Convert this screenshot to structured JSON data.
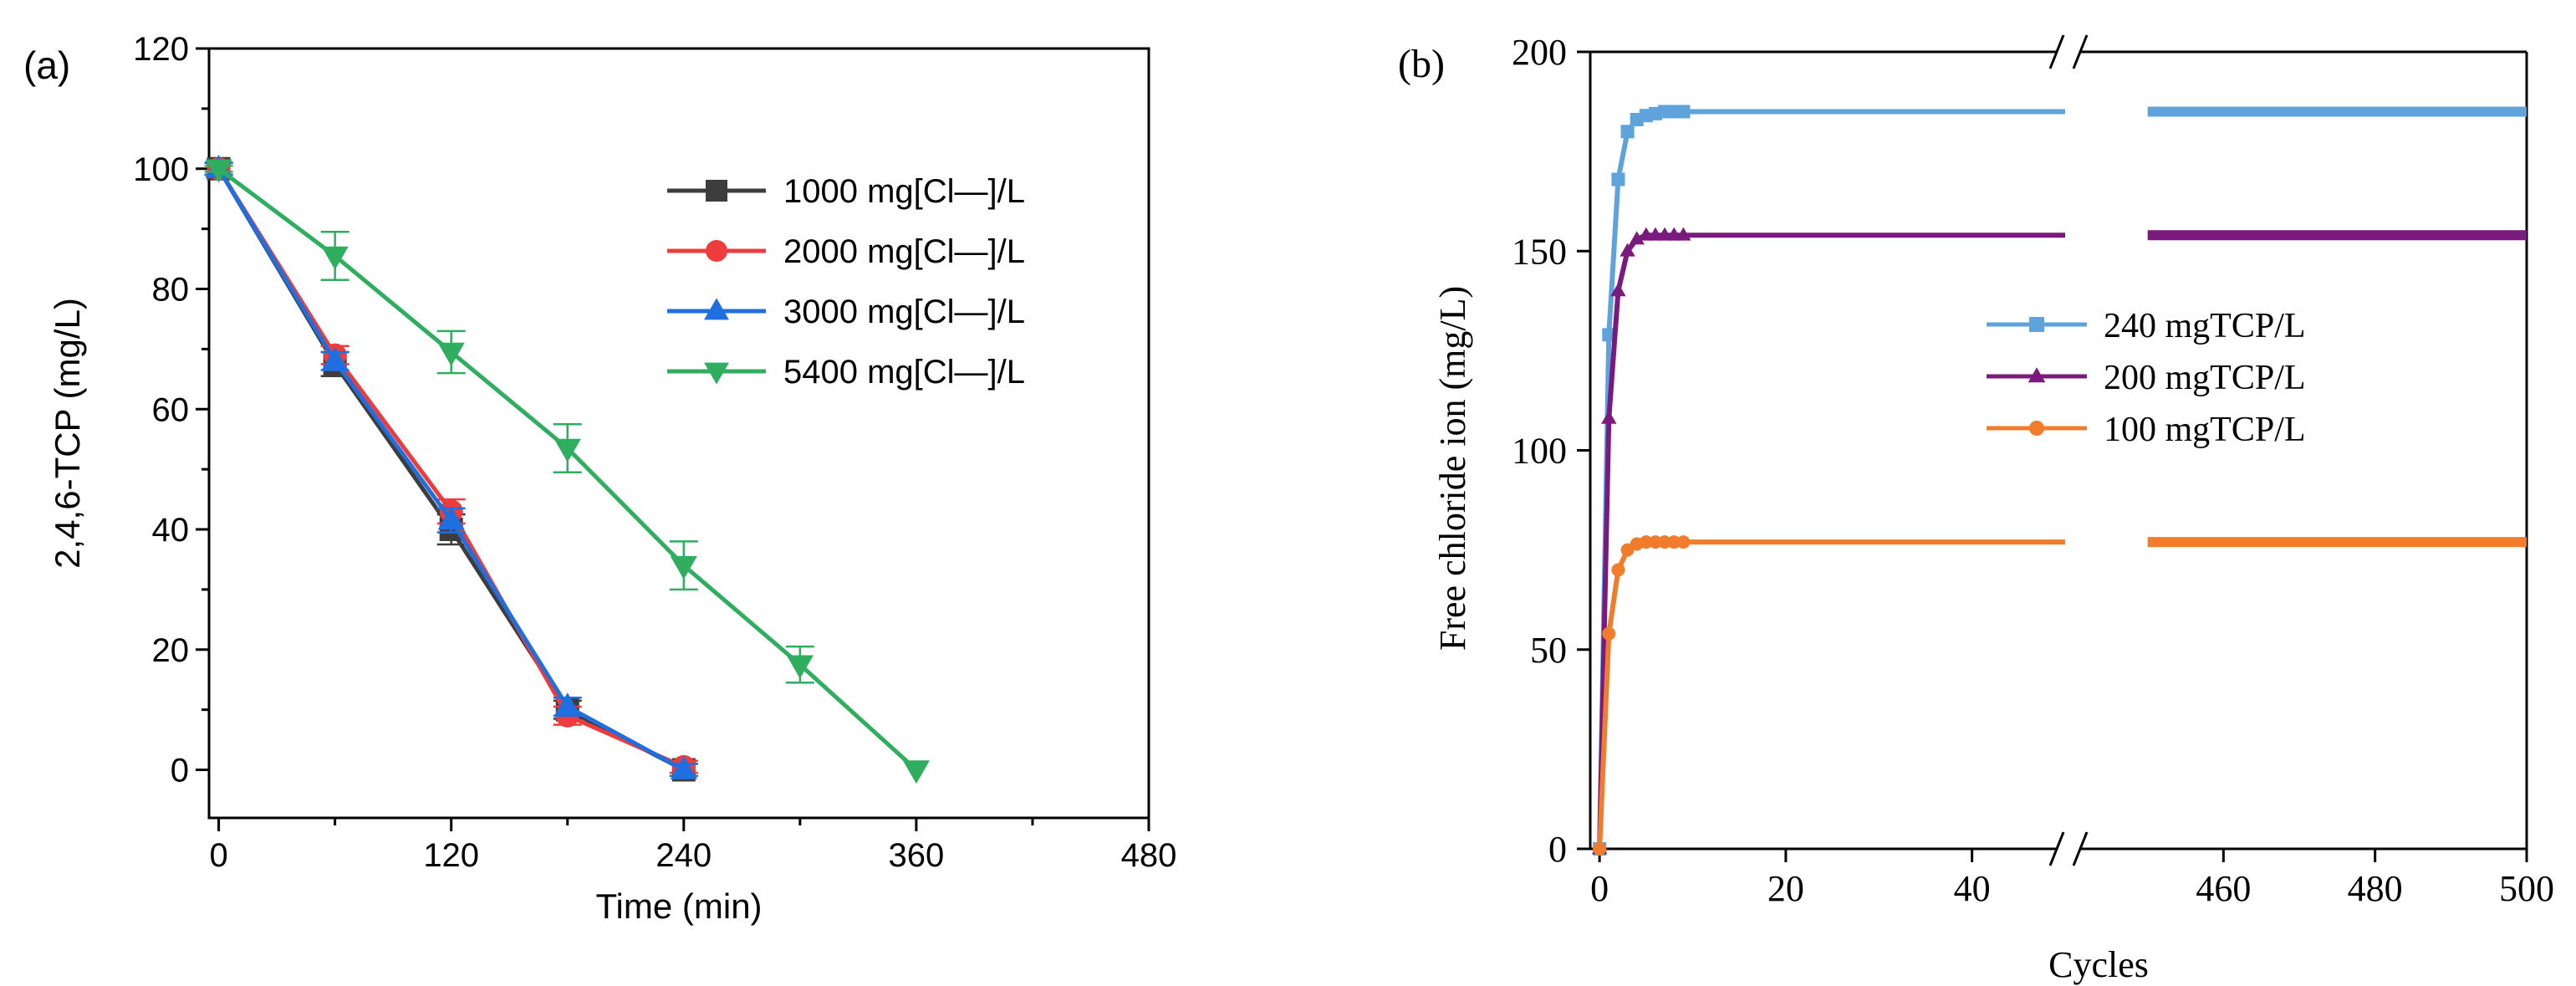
{
  "chart_data": [
    {
      "type": "line",
      "panel_label": "(a)",
      "title": "",
      "xlabel": "Time (min)",
      "ylabel": "2,4,6-TCP (mg/L)",
      "xlim": [
        -5,
        480
      ],
      "ylim": [
        -8,
        120
      ],
      "xticks": [
        0,
        120,
        240,
        360,
        480
      ],
      "yticks": [
        0,
        20,
        40,
        60,
        80,
        100,
        120
      ],
      "xtick_labels": [
        "0",
        "120",
        "240",
        "360",
        "480"
      ],
      "ytick_labels": [
        "0",
        "20",
        "40",
        "60",
        "80",
        "100",
        "120"
      ],
      "legend_position": "upper-right",
      "series": [
        {
          "name": "1000 mg[Cl—]/L",
          "color": "#3d3d3d",
          "marker": "square",
          "x": [
            0,
            60,
            120,
            180,
            240
          ],
          "y": [
            100,
            67.5,
            40,
            10,
            0
          ],
          "err": [
            1,
            2,
            2.5,
            1.5,
            1
          ]
        },
        {
          "name": "2000 mg[Cl—]/L",
          "color": "#ee3b3b",
          "marker": "circle",
          "x": [
            0,
            60,
            120,
            180,
            240
          ],
          "y": [
            100,
            69,
            43,
            9,
            0.5
          ],
          "err": [
            1,
            1.5,
            2,
            1.5,
            1
          ]
        },
        {
          "name": "3000 mg[Cl—]/L",
          "color": "#1f6fe0",
          "marker": "triangle-up",
          "x": [
            0,
            60,
            120,
            180,
            240
          ],
          "y": [
            100,
            68,
            41.5,
            10.5,
            0
          ],
          "err": [
            1,
            1.5,
            2,
            1.5,
            1
          ]
        },
        {
          "name": "5400 mg[Cl—]/L",
          "color": "#2fae5f",
          "marker": "triangle-down",
          "x": [
            0,
            60,
            120,
            180,
            240,
            300,
            360
          ],
          "y": [
            100,
            85.5,
            69.5,
            53.5,
            34,
            17.5,
            0
          ],
          "err": [
            0.5,
            4,
            3.5,
            4,
            4,
            3,
            0
          ]
        }
      ]
    },
    {
      "type": "line",
      "panel_label": "(b)",
      "title": "",
      "xlabel": "Cycles",
      "ylabel": "Free chloride ion (mg/L)",
      "ylim": [
        0,
        200
      ],
      "yticks": [
        0,
        50,
        100,
        150,
        200
      ],
      "ytick_labels": [
        "0",
        "50",
        "100",
        "150",
        "200"
      ],
      "x_break": true,
      "x_segments": [
        {
          "range": [
            -1,
            50
          ],
          "ticks": [
            0,
            20,
            40
          ],
          "labels": [
            "0",
            "20",
            "40"
          ]
        },
        {
          "range": [
            440,
            500
          ],
          "ticks": [
            460,
            480,
            500
          ],
          "labels": [
            "460",
            "480",
            "500"
          ]
        }
      ],
      "legend_position": "center-right",
      "series": [
        {
          "name": "240 mgTCP/L",
          "color": "#5ea3dc",
          "marker": "square",
          "x": [
            0,
            1,
            2,
            3,
            4,
            5,
            6,
            7,
            8,
            9,
            10,
            12,
            14,
            16,
            18,
            20,
            25,
            30,
            35,
            40,
            45,
            50,
            450,
            460,
            470,
            480,
            490,
            500
          ],
          "y": [
            0,
            129,
            168,
            180,
            183,
            184,
            184.5,
            185,
            185,
            185,
            185,
            185,
            185,
            185,
            185,
            185,
            185,
            185,
            185,
            185,
            185,
            185,
            185,
            185,
            185,
            185,
            185,
            185
          ]
        },
        {
          "name": "200 mgTCP/L",
          "color": "#7b1a7e",
          "marker": "triangle-up",
          "x": [
            0,
            1,
            2,
            3,
            4,
            5,
            6,
            7,
            8,
            9,
            10,
            12,
            14,
            16,
            18,
            20,
            25,
            30,
            35,
            40,
            45,
            50,
            450,
            460,
            470,
            480,
            490,
            500
          ],
          "y": [
            0,
            108,
            140,
            150,
            153,
            154,
            154,
            154,
            154,
            154,
            154,
            154,
            154,
            154,
            154,
            154,
            154,
            154,
            154,
            154,
            154,
            154,
            154,
            154,
            154,
            154,
            154,
            154
          ]
        },
        {
          "name": "100 mgTCP/L",
          "color": "#f07c2c",
          "marker": "circle",
          "x": [
            0,
            1,
            2,
            3,
            4,
            5,
            6,
            7,
            8,
            9,
            10,
            12,
            14,
            16,
            18,
            20,
            25,
            30,
            35,
            40,
            45,
            50,
            450,
            460,
            470,
            480,
            490,
            500
          ],
          "y": [
            0,
            54,
            70,
            75,
            76.5,
            77,
            77,
            77,
            77,
            77,
            77,
            77,
            77,
            77,
            77,
            77,
            77,
            77,
            77,
            77,
            77,
            77,
            77,
            77,
            77,
            77,
            77,
            77
          ]
        }
      ]
    }
  ]
}
